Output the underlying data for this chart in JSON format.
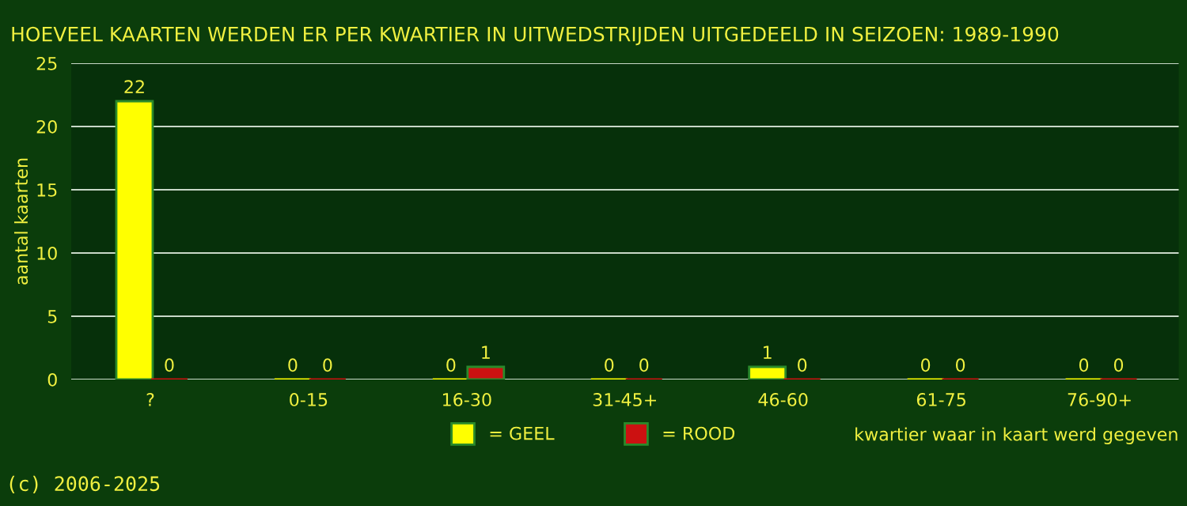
{
  "chart_data": {
    "type": "bar",
    "title": "HOEVEEL KAARTEN WERDEN ER PER KWARTIER IN UITWEDSTRIJDEN UITGEDEELD IN SEIZOEN: 1989-1990",
    "categories": [
      "?",
      "0-15",
      "16-30",
      "31-45+",
      "46-60",
      "61-75",
      "76-90+"
    ],
    "series": [
      {
        "name": "= GEEL",
        "color": "#ffff00",
        "values": [
          22,
          0,
          0,
          0,
          1,
          0,
          0
        ]
      },
      {
        "name": "= ROOD",
        "color": "#cc1111",
        "values": [
          0,
          0,
          1,
          0,
          0,
          0,
          0
        ]
      }
    ],
    "xlabel": "kwartier waar in kaart werd gegeven",
    "ylabel": "aantal kaarten",
    "ylim": [
      0,
      25
    ],
    "yticks": [
      0,
      5,
      10,
      15,
      20,
      25
    ],
    "grid": "y",
    "legend": "bottom",
    "data_labels": true,
    "annotations": [
      "(c) 2006-2025"
    ]
  }
}
